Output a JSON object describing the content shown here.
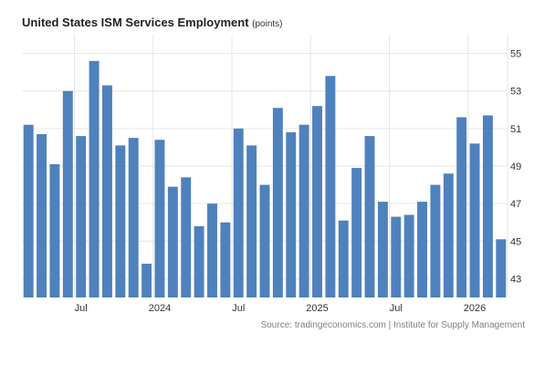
{
  "chart_data": {
    "type": "bar",
    "title": "United States ISM Services Employment",
    "unit": "(points)",
    "source": "Source: tradingeconomics.com | Institute for Supply Management",
    "grid": true,
    "ylim": [
      42,
      56
    ],
    "yticks": [
      43,
      45,
      47,
      49,
      51,
      53,
      55
    ],
    "x_labels": [
      {
        "label": "Jul",
        "index": 4
      },
      {
        "label": "2024",
        "index": 10
      },
      {
        "label": "Jul",
        "index": 16
      },
      {
        "label": "2025",
        "index": 22
      },
      {
        "label": "Jul",
        "index": 28
      },
      {
        "label": "2026",
        "index": 34
      }
    ],
    "bar_color": "#4f81bd",
    "values": [
      51.2,
      50.7,
      49.1,
      53.0,
      50.6,
      54.6,
      53.3,
      50.1,
      50.5,
      43.8,
      50.4,
      47.9,
      48.4,
      45.8,
      47.0,
      46.0,
      51.0,
      50.1,
      48.0,
      52.1,
      50.8,
      51.2,
      52.2,
      53.8,
      46.1,
      48.9,
      50.6,
      47.1,
      46.3,
      46.4,
      47.1,
      48.0,
      48.6,
      51.6,
      50.2,
      51.7,
      45.1
    ]
  }
}
